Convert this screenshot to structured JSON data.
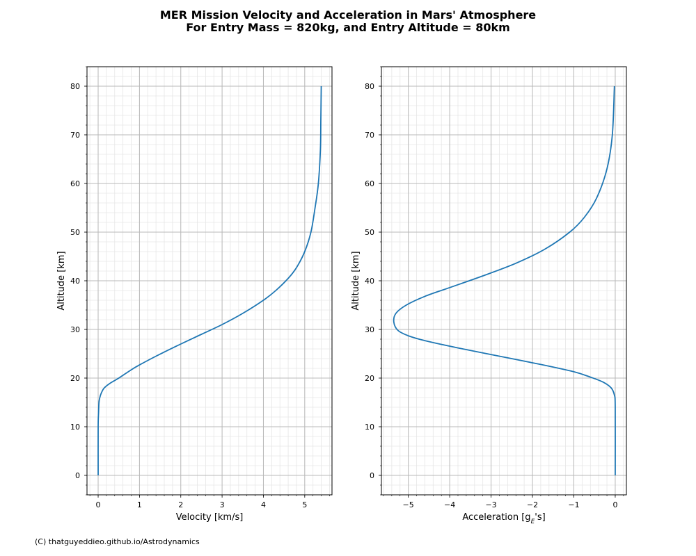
{
  "figure": {
    "title_line1": "MER Mission Velocity and Acceleration in Mars' Atmosphere",
    "title_line2": "For Entry Mass = 820kg, and Entry Altitude = 80km",
    "credit": "(C) thatguyeddieo.github.io/Astrodynamics",
    "line_color": "#1f77b4"
  },
  "chart_data": [
    {
      "type": "line",
      "xlabel": "Velocity  [km/s]",
      "ylabel": "Altitude [km]",
      "xlim": [
        -0.27,
        5.66
      ],
      "ylim": [
        -4,
        84
      ],
      "x_ticks": [
        0,
        1,
        2,
        3,
        4,
        5
      ],
      "x_tick_labels": [
        "0",
        "1",
        "2",
        "3",
        "4",
        "5"
      ],
      "y_ticks": [
        0,
        10,
        20,
        30,
        40,
        50,
        60,
        70,
        80
      ],
      "y_tick_labels": [
        "0",
        "10",
        "20",
        "30",
        "40",
        "50",
        "60",
        "70",
        "80"
      ],
      "grid": true,
      "series": [
        {
          "x": [
            0.0,
            0.0,
            0.01,
            0.02,
            0.04,
            0.08,
            0.15,
            0.3,
            0.5,
            0.8,
            1.0,
            1.4,
            2.0,
            2.5,
            3.0,
            3.5,
            4.0,
            4.3,
            4.6,
            4.8,
            5.0,
            5.15,
            5.25,
            5.33,
            5.38,
            5.39,
            5.4
          ],
          "y": [
            0,
            10,
            13,
            15,
            16,
            17,
            18,
            19,
            20,
            21.7,
            22.7,
            24.5,
            27,
            29,
            31,
            33.3,
            36,
            38,
            40.5,
            42.7,
            46,
            50,
            55,
            60,
            67,
            73,
            80
          ]
        }
      ]
    },
    {
      "type": "line",
      "xlabel": "Acceleration [g",
      "xlabel_sub": "E",
      "xlabel_end": "'s]",
      "ylabel": "Altitude [km]",
      "xlim": [
        -5.65,
        0.27
      ],
      "ylim": [
        -4,
        84
      ],
      "x_ticks": [
        -5,
        -4,
        -3,
        -2,
        -1,
        0
      ],
      "x_tick_labels": [
        "−5",
        "−4",
        "−3",
        "−2",
        "−1",
        "0"
      ],
      "y_ticks": [
        0,
        10,
        20,
        30,
        40,
        50,
        60,
        70,
        80
      ],
      "y_tick_labels": [
        "0",
        "10",
        "20",
        "30",
        "40",
        "50",
        "60",
        "70",
        "80"
      ],
      "grid": true,
      "series": [
        {
          "x": [
            0.0,
            0.0,
            -0.02,
            -0.1,
            -0.3,
            -0.6,
            -1.0,
            -1.8,
            -2.8,
            -3.8,
            -4.6,
            -5.0,
            -5.25,
            -5.35,
            -5.3,
            -5.05,
            -4.6,
            -4.0,
            -3.2,
            -2.4,
            -1.7,
            -1.1,
            -0.75,
            -0.45,
            -0.2,
            -0.07,
            -0.02
          ],
          "y": [
            0,
            14,
            16.5,
            18,
            19.2,
            20.2,
            21.3,
            22.8,
            24.5,
            26.2,
            27.7,
            28.7,
            29.8,
            31.5,
            33.3,
            35,
            36.8,
            38.6,
            41,
            43.6,
            46.5,
            50,
            53,
            57,
            63,
            70,
            80
          ]
        }
      ]
    }
  ]
}
